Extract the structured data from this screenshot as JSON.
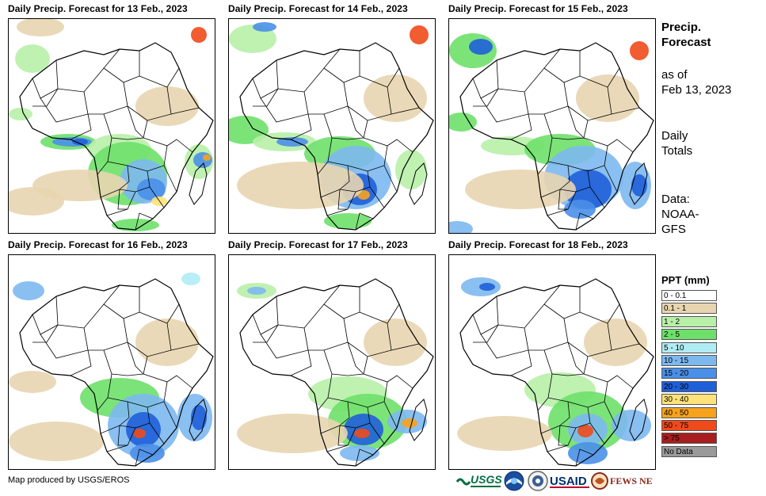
{
  "panels": [
    {
      "title": "Daily Precip. Forecast for 13 Feb., 2023"
    },
    {
      "title": "Daily Precip. Forecast for 14 Feb., 2023"
    },
    {
      "title": "Daily Precip. Forecast for 15 Feb., 2023"
    },
    {
      "title": "Daily Precip. Forecast for 16 Feb., 2023"
    },
    {
      "title": "Daily Precip. Forecast for 17 Feb., 2023"
    },
    {
      "title": "Daily Precip. Forecast for 18 Feb., 2023"
    }
  ],
  "side": {
    "title_line1": "Precip.",
    "title_line2": "Forecast",
    "asof_line1": "as of",
    "asof_line2": "Feb 13, 2023",
    "totals_line1": "Daily",
    "totals_line2": "Totals",
    "data_line1": "Data:",
    "data_line2": "NOAA-",
    "data_line3": "GFS"
  },
  "legend": {
    "title": "PPT (mm)",
    "items": [
      {
        "label": "0 - 0.1",
        "color": "#ffffff"
      },
      {
        "label": "0.1 - 1",
        "color": "#e8d5b0"
      },
      {
        "label": "1 - 2",
        "color": "#b8f0a8"
      },
      {
        "label": "2 - 5",
        "color": "#6ee06a"
      },
      {
        "label": "5 - 10",
        "color": "#b0ecf4"
      },
      {
        "label": "10 - 15",
        "color": "#7db8ef"
      },
      {
        "label": "15 - 20",
        "color": "#4a8fe8"
      },
      {
        "label": "20 - 30",
        "color": "#1f5fd8"
      },
      {
        "label": "30 - 40",
        "color": "#ffe27a"
      },
      {
        "label": "40 - 50",
        "color": "#f7a21c"
      },
      {
        "label": "50 - 75",
        "color": "#f04a1a"
      },
      {
        "label": "> 75",
        "color": "#a81e1e"
      },
      {
        "label": "No Data",
        "color": "#9a9a9a"
      }
    ]
  },
  "credit": "Map produced by USGS/EROS",
  "logos": {
    "usgs": "USGS",
    "usaid": "USAID",
    "fewsnet": "FEWS NET"
  }
}
